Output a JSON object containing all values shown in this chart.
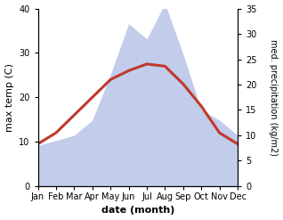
{
  "months": [
    "Jan",
    "Feb",
    "Mar",
    "Apr",
    "May",
    "Jun",
    "Jul",
    "Aug",
    "Sep",
    "Oct",
    "Nov",
    "Dec"
  ],
  "month_indices": [
    1,
    2,
    3,
    4,
    5,
    6,
    7,
    8,
    9,
    10,
    11,
    12
  ],
  "temp_max": [
    9.5,
    12,
    16,
    20,
    24,
    26,
    27.5,
    27,
    23,
    18,
    12,
    9.5
  ],
  "precipitation": [
    8,
    9,
    10,
    13,
    22,
    32,
    29,
    36,
    26,
    15,
    13,
    10
  ],
  "temp_ylim": [
    0,
    40
  ],
  "precip_ylim": [
    0,
    35
  ],
  "left_yticks": [
    0,
    10,
    20,
    30,
    40
  ],
  "right_yticks": [
    0,
    5,
    10,
    15,
    20,
    25,
    30,
    35
  ],
  "temp_color": "#c0392b",
  "precip_fill_color": "#b8c4e8",
  "xlabel": "date (month)",
  "ylabel_left": "max temp (C)",
  "ylabel_right": "med. precipitation (kg/m2)",
  "bg_color": "#ffffff",
  "temp_linewidth": 2.2
}
